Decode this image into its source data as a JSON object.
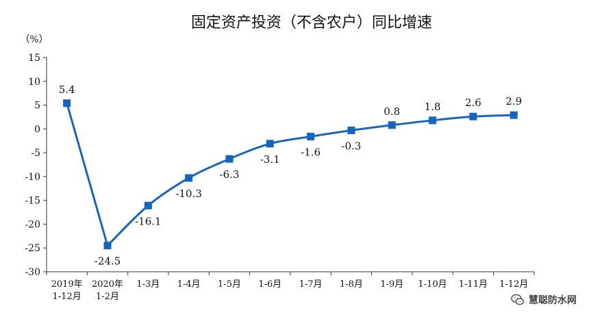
{
  "chart_data": {
    "type": "line",
    "title": "固定资产投资（不含农户）同比增速",
    "ylabel": "（%）",
    "xlabel": "",
    "ylim": [
      -30,
      15
    ],
    "yticks": [
      15,
      10,
      5,
      0,
      -5,
      -10,
      -15,
      -20,
      -25,
      -30
    ],
    "categories": [
      "2019年\n1-12月",
      "2020年\n1-2月",
      "1-3月",
      "1-4月",
      "1-5月",
      "1-6月",
      "1-7月",
      "1-8月",
      "1-9月",
      "1-10月",
      "1-11月",
      "1-12月"
    ],
    "series": [
      {
        "values": [
          5.4,
          -24.5,
          -16.1,
          -10.3,
          -6.3,
          -3.1,
          -1.6,
          -0.3,
          0.8,
          1.8,
          2.6,
          2.9
        ],
        "labels": [
          "5.4",
          "-24.5",
          "-16.1",
          "-10.3",
          "-6.3",
          "-3.1",
          "-1.6",
          "-0.3",
          "0.8",
          "1.8",
          "2.6",
          "2.9"
        ],
        "label_positions": [
          "above",
          "below",
          "below",
          "below",
          "below",
          "below",
          "below",
          "below",
          "above",
          "above",
          "above",
          "above"
        ]
      }
    ],
    "line_color": "#1565c0",
    "marker": "square",
    "grid": false
  },
  "watermark": {
    "text": "慧聪防水网",
    "icon": "wechat-icon"
  }
}
